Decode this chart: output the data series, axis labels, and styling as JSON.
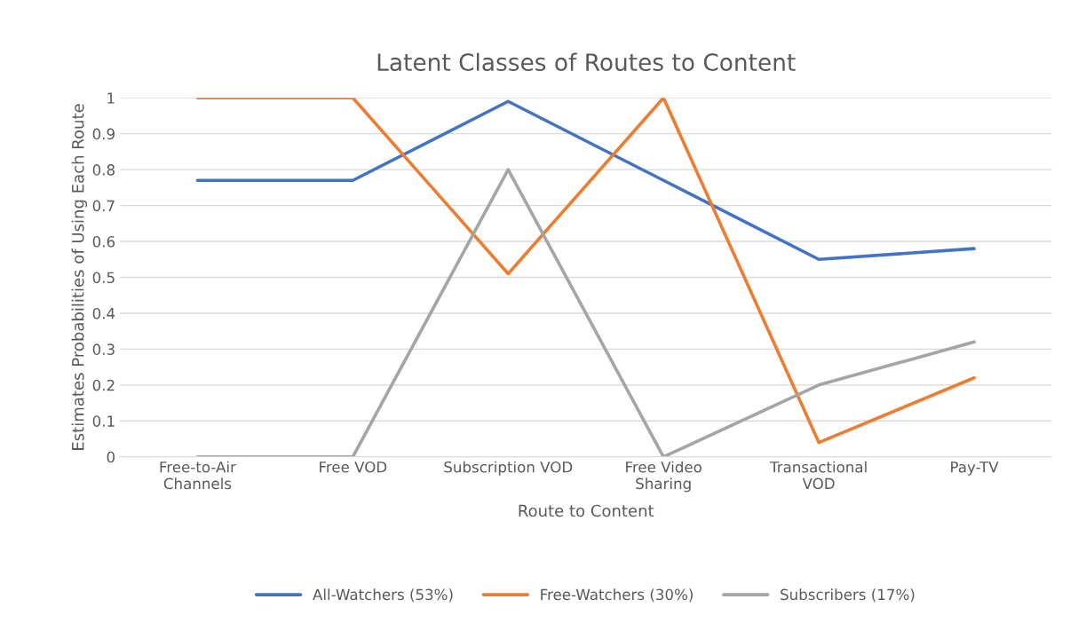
{
  "chart_data": {
    "type": "line",
    "title": "Latent Classes of Routes to Content",
    "xlabel": "Route to Content",
    "ylabel": "Estimates Probabilities of Using Each Route",
    "categories": [
      "Free-to-Air\nChannels",
      "Free VOD",
      "Subscription VOD",
      "Free Video\nSharing",
      "Transactional\nVOD",
      "Pay-TV"
    ],
    "series": [
      {
        "name": "All-Watchers (53%)",
        "color": "#4472c4",
        "values": [
          0.77,
          0.77,
          0.99,
          0.77,
          0.55,
          0.58
        ]
      },
      {
        "name": "Free-Watchers (30%)",
        "color": "#ed7d31",
        "values": [
          1,
          1,
          0.51,
          1,
          0.04,
          0.22
        ]
      },
      {
        "name": "Subscribers (17%)",
        "color": "#a5a5a5",
        "values": [
          0,
          0,
          0.8,
          0,
          0.2,
          0.32
        ]
      }
    ],
    "ylim": [
      0,
      1
    ],
    "yticks": [
      0,
      0.1,
      0.2,
      0.3,
      0.4,
      0.5,
      0.6,
      0.7,
      0.8,
      0.9,
      1
    ],
    "grid": "y",
    "legend": "bottom",
    "marker": "none",
    "line_style": "solid"
  }
}
